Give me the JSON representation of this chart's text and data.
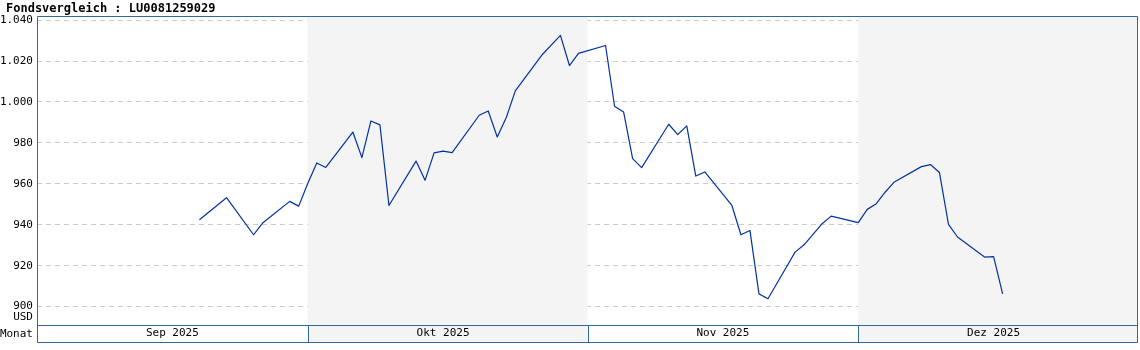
{
  "chart_data": {
    "type": "line",
    "title": "Fondsvergleich : LU0081259029",
    "xlabel": "Monat",
    "ylabel": "USD",
    "x": [
      "2025-09-19",
      "2025-09-22",
      "2025-09-25",
      "2025-09-26",
      "2025-09-29",
      "2025-09-30",
      "2025-10-01",
      "2025-10-02",
      "2025-10-03",
      "2025-10-06",
      "2025-10-07",
      "2025-10-08",
      "2025-10-09",
      "2025-10-10",
      "2025-10-13",
      "2025-10-14",
      "2025-10-15",
      "2025-10-16",
      "2025-10-17",
      "2025-10-20",
      "2025-10-21",
      "2025-10-22",
      "2025-10-23",
      "2025-10-24",
      "2025-10-27",
      "2025-10-29",
      "2025-10-30",
      "2025-10-31",
      "2025-11-03",
      "2025-11-04",
      "2025-11-05",
      "2025-11-06",
      "2025-11-07",
      "2025-11-10",
      "2025-11-11",
      "2025-11-12",
      "2025-11-13",
      "2025-11-14",
      "2025-11-17",
      "2025-11-18",
      "2025-11-19",
      "2025-11-20",
      "2025-11-21",
      "2025-11-24",
      "2025-11-25",
      "2025-11-27",
      "2025-11-28",
      "2025-12-01",
      "2025-12-02",
      "2025-12-03",
      "2025-12-04",
      "2025-12-05",
      "2025-12-08",
      "2025-12-09",
      "2025-12-10",
      "2025-12-11",
      "2025-12-12",
      "2025-12-15",
      "2025-12-16",
      "2025-12-17"
    ],
    "series": [
      {
        "color": "#0033a0",
        "values": [
          942.4,
          953.2,
          935.1,
          940.8,
          951.4,
          949.1,
          960.1,
          970.2,
          968.0,
          985.3,
          972.8,
          990.7,
          988.8,
          949.4,
          971.1,
          961.7,
          975.1,
          976.0,
          975.2,
          993.5,
          995.6,
          982.9,
          992.4,
          1005.4,
          1023.2,
          1032.5,
          1017.8,
          1023.7,
          1027.6,
          997.9,
          995.1,
          972.3,
          967.9,
          989.1,
          984.0,
          988.3,
          963.8,
          965.8,
          949.4,
          935.1,
          937.2,
          906.2,
          903.8,
          926.6,
          930.2,
          940.5,
          944.2,
          941.0,
          947.5,
          950.3,
          956.0,
          960.9,
          968.4,
          969.4,
          965.5,
          940.2,
          934.0,
          924.2,
          924.4,
          906.2
        ]
      }
    ],
    "xlim": [
      "2025-09-01",
      "2026-01-01"
    ],
    "xticks": [
      {
        "value": "2025-09-16",
        "label": "Sep 2025"
      },
      {
        "value": "2025-10-16",
        "label": "Okt 2025"
      },
      {
        "value": "2025-11-16",
        "label": "Nov 2025"
      },
      {
        "value": "2025-12-16",
        "label": "Dez 2025"
      }
    ],
    "ylim": [
      891,
      1042
    ],
    "yticks": [
      {
        "value": 900,
        "label": "900"
      },
      {
        "value": 920,
        "label": "920"
      },
      {
        "value": 940,
        "label": "940"
      },
      {
        "value": 960,
        "label": "960"
      },
      {
        "value": 980,
        "label": "980"
      },
      {
        "value": 1000,
        "label": "1.000"
      },
      {
        "value": 1020,
        "label": "1.020"
      },
      {
        "value": 1040,
        "label": "1.040"
      }
    ],
    "bands": [
      {
        "axis": "x",
        "from": "2025-10-01",
        "to": "2025-11-01",
        "color": "#f4f4f4"
      },
      {
        "axis": "x",
        "from": "2025-12-01",
        "to": "2026-01-01",
        "color": "#f4f4f4"
      }
    ],
    "grid": "y",
    "legend": false,
    "marker": "none",
    "line_style": "solid"
  }
}
